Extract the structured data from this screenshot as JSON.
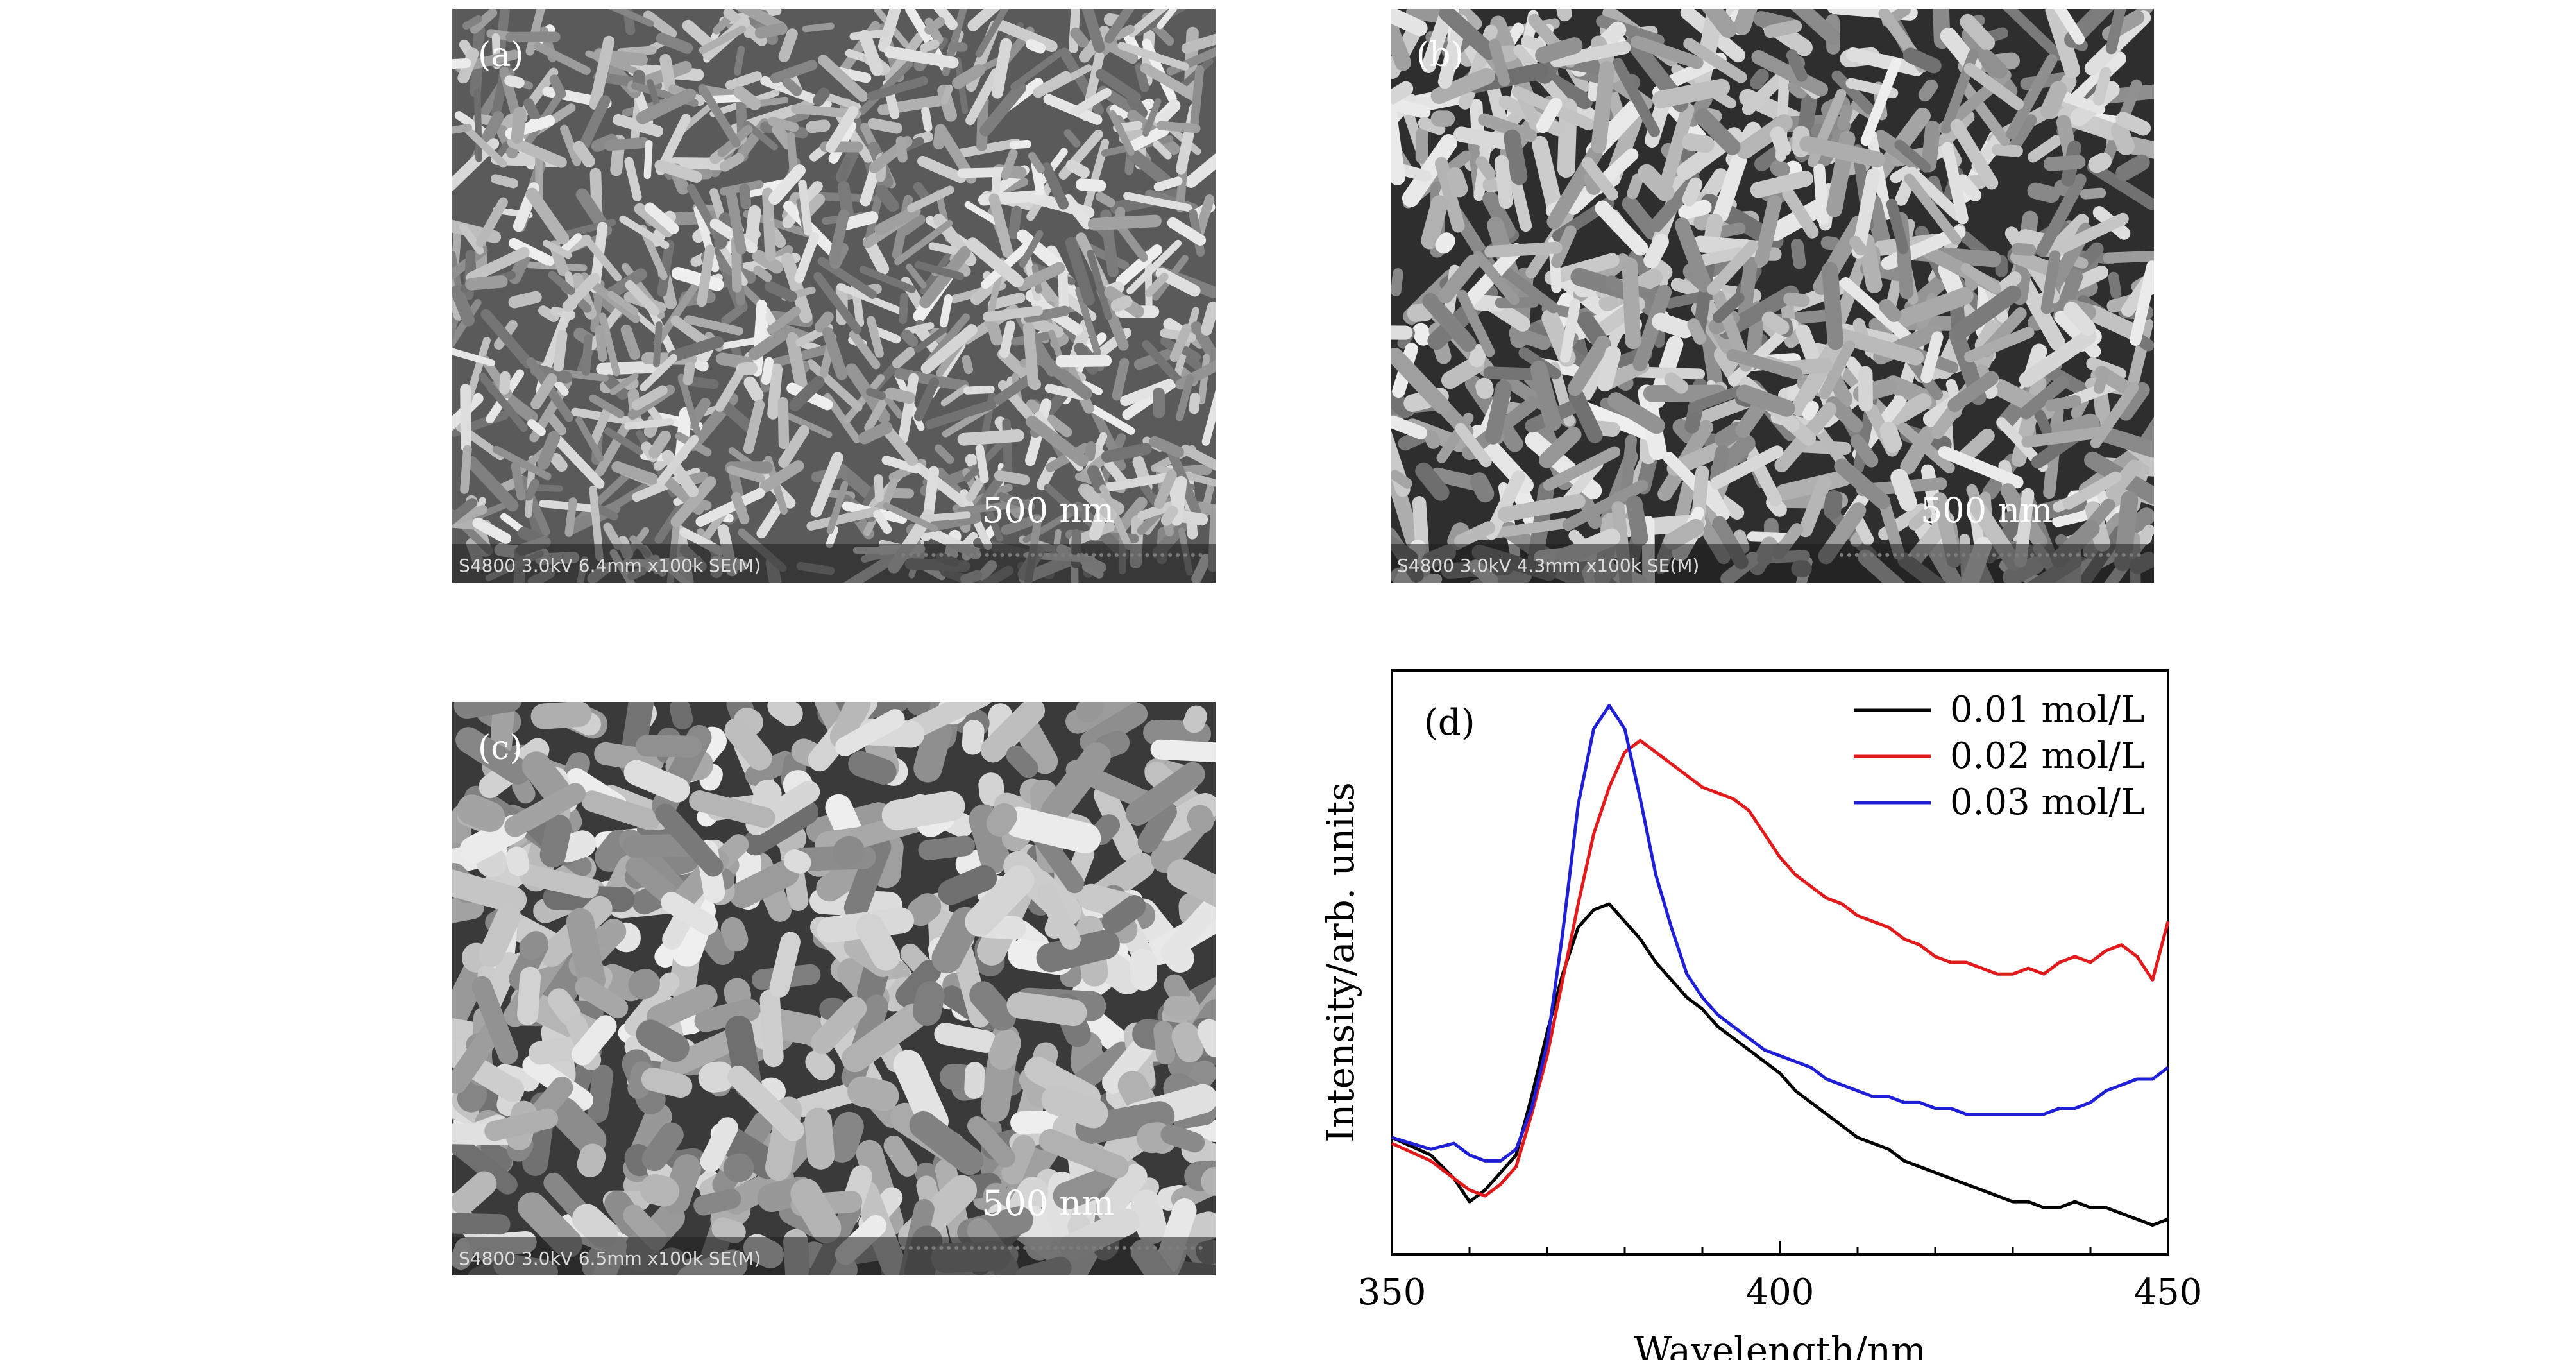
{
  "panels": [
    {
      "label": "(a)",
      "scale": "500 nm",
      "meta": "S4800 3.0kV 6.4mm x100k SE(M)"
    },
    {
      "label": "(b)",
      "scale": "500 nm",
      "meta": "S4800 3.0kV 4.3mm x100k SE(M)"
    },
    {
      "label": "(c)",
      "scale": "500 nm",
      "meta": "S4800 3.0kV 6.5mm x100k SE(M)"
    }
  ],
  "chart_data": {
    "type": "line",
    "panel_label": "(d)",
    "xlabel": "Wavelength/nm",
    "ylabel": "Intensity/arb. units",
    "xlim": [
      350,
      450
    ],
    "ylim": [
      0,
      1
    ],
    "xticks": [
      350,
      400,
      450
    ],
    "legend_position": "top-right",
    "grid": false,
    "series": [
      {
        "name": "0.01 mol/L",
        "color": "#000000",
        "x": [
          350,
          355,
          358,
          360,
          362,
          364,
          366,
          368,
          370,
          372,
          374,
          376,
          378,
          380,
          382,
          384,
          386,
          388,
          390,
          392,
          394,
          396,
          398,
          400,
          402,
          404,
          406,
          408,
          410,
          412,
          414,
          416,
          418,
          420,
          422,
          424,
          426,
          428,
          430,
          432,
          434,
          436,
          438,
          440,
          442,
          444,
          446,
          448,
          450
        ],
        "y": [
          0.2,
          0.17,
          0.13,
          0.09,
          0.11,
          0.14,
          0.17,
          0.27,
          0.38,
          0.48,
          0.56,
          0.59,
          0.6,
          0.57,
          0.54,
          0.5,
          0.47,
          0.44,
          0.42,
          0.39,
          0.37,
          0.35,
          0.33,
          0.31,
          0.28,
          0.26,
          0.24,
          0.22,
          0.2,
          0.19,
          0.18,
          0.16,
          0.15,
          0.14,
          0.13,
          0.12,
          0.11,
          0.1,
          0.09,
          0.09,
          0.08,
          0.08,
          0.09,
          0.08,
          0.08,
          0.07,
          0.06,
          0.05,
          0.06
        ]
      },
      {
        "name": "0.02 mol/L",
        "color": "#e31a1c",
        "x": [
          350,
          355,
          358,
          360,
          362,
          364,
          366,
          368,
          370,
          372,
          374,
          376,
          378,
          380,
          382,
          384,
          386,
          388,
          390,
          392,
          394,
          396,
          398,
          400,
          402,
          404,
          406,
          408,
          410,
          412,
          414,
          416,
          418,
          420,
          422,
          424,
          426,
          428,
          430,
          432,
          434,
          436,
          438,
          440,
          442,
          444,
          446,
          448,
          450
        ],
        "y": [
          0.19,
          0.16,
          0.13,
          0.11,
          0.1,
          0.12,
          0.15,
          0.24,
          0.34,
          0.47,
          0.6,
          0.72,
          0.8,
          0.86,
          0.88,
          0.86,
          0.84,
          0.82,
          0.8,
          0.79,
          0.78,
          0.76,
          0.72,
          0.68,
          0.65,
          0.63,
          0.61,
          0.6,
          0.58,
          0.57,
          0.56,
          0.54,
          0.53,
          0.51,
          0.5,
          0.5,
          0.49,
          0.48,
          0.48,
          0.49,
          0.48,
          0.5,
          0.51,
          0.5,
          0.52,
          0.53,
          0.51,
          0.47,
          0.57
        ]
      },
      {
        "name": "0.03 mol/L",
        "color": "#1f1fd8",
        "x": [
          350,
          355,
          358,
          360,
          362,
          364,
          366,
          368,
          370,
          372,
          374,
          376,
          378,
          380,
          382,
          384,
          386,
          388,
          390,
          392,
          394,
          396,
          398,
          400,
          402,
          404,
          406,
          408,
          410,
          412,
          414,
          416,
          418,
          420,
          422,
          424,
          426,
          428,
          430,
          432,
          434,
          436,
          438,
          440,
          442,
          444,
          446,
          448,
          450
        ],
        "y": [
          0.2,
          0.18,
          0.19,
          0.17,
          0.16,
          0.16,
          0.18,
          0.25,
          0.36,
          0.55,
          0.77,
          0.9,
          0.94,
          0.9,
          0.78,
          0.65,
          0.56,
          0.48,
          0.44,
          0.41,
          0.39,
          0.37,
          0.35,
          0.34,
          0.33,
          0.32,
          0.3,
          0.29,
          0.28,
          0.27,
          0.27,
          0.26,
          0.26,
          0.25,
          0.25,
          0.24,
          0.24,
          0.24,
          0.24,
          0.24,
          0.24,
          0.25,
          0.25,
          0.26,
          0.28,
          0.29,
          0.3,
          0.3,
          0.32
        ]
      }
    ]
  }
}
